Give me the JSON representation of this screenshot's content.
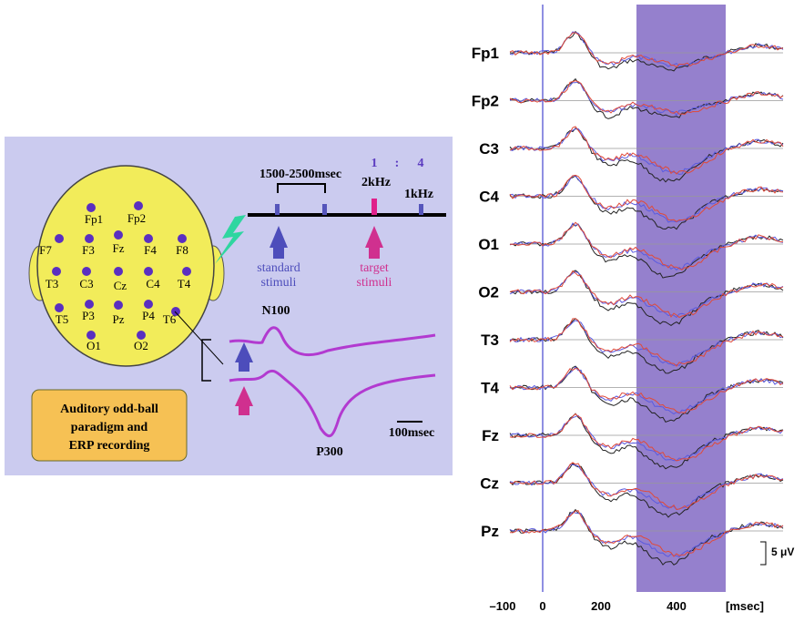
{
  "electrodes": [
    "Fp1",
    "Fp2",
    "F7",
    "F3",
    "Fz",
    "F4",
    "F8",
    "T3",
    "C3",
    "Cz",
    "C4",
    "T4",
    "T5",
    "P3",
    "Pz",
    "P4",
    "T6",
    "O1",
    "O2"
  ],
  "paradigm": {
    "interval": "1500-2500msec",
    "ratio": [
      "1",
      ":",
      "4"
    ],
    "target_freq": "2kHz",
    "standard_freq": "1kHz",
    "standard_label": [
      "standard",
      "stimuli"
    ],
    "target_label": [
      "target",
      "stimuli"
    ],
    "n100": "N100",
    "p300": "P300",
    "time_scale": "100msec",
    "caption": [
      "Auditory odd-ball",
      "paradigm and",
      "ERP recording"
    ]
  },
  "channels": [
    "Fp1",
    "Fp2",
    "C3",
    "C4",
    "O1",
    "O2",
    "T3",
    "T4",
    "Fz",
    "Cz",
    "Pz"
  ],
  "x_axis_labels": [
    "–100",
    "0",
    "200",
    "400",
    "[msec]"
  ],
  "amplitude_scale": "5 μV"
}
